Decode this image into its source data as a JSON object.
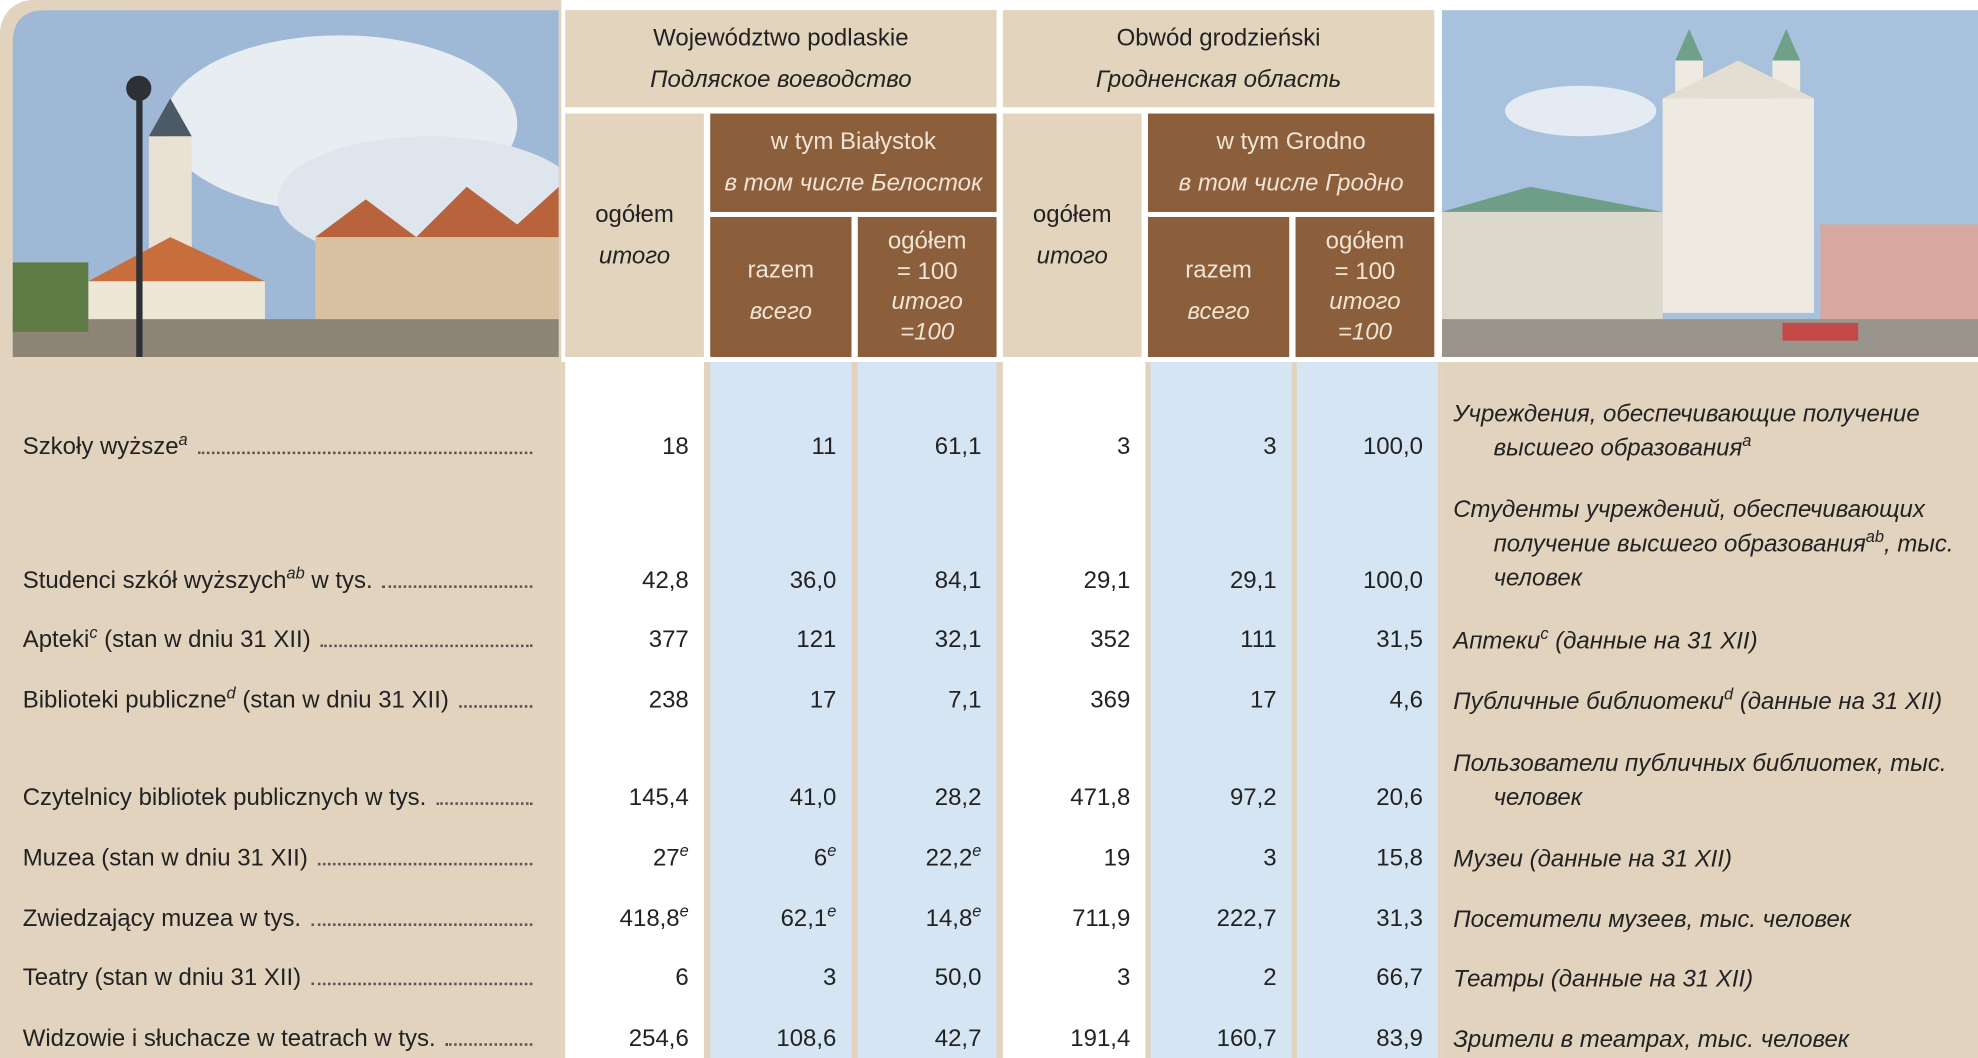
{
  "header": {
    "regions": [
      {
        "pl": "Województwo podlaskie",
        "ru": "Подляское воеводство",
        "total": {
          "pl": "ogółem",
          "ru": "итого"
        },
        "city": {
          "pl": "w tym Białystok",
          "ru": "в том числе Белосток"
        },
        "razem": {
          "pl": "razem",
          "ru": "всего"
        },
        "share": {
          "pl": "ogółem = 100",
          "ru": "итого =100"
        }
      },
      {
        "pl": "Obwód grodzieński",
        "ru": "Гродненская область",
        "total": {
          "pl": "ogółem",
          "ru": "итого"
        },
        "city": {
          "pl": "w tym Grodno",
          "ru": "в том числе Гродно"
        },
        "razem": {
          "pl": "razem",
          "ru": "всего"
        },
        "share": {
          "pl": "ogółem = 100",
          "ru": "итого =100"
        }
      }
    ]
  },
  "rows": [
    {
      "pl": [
        "Szkoły wyższe",
        {
          "sup": "a"
        }
      ],
      "cells": [
        "18",
        "11",
        "61,1",
        "3",
        "3",
        "100,0"
      ],
      "ru": [
        "Учреждения, обеспечивающие получение высшего образования",
        {
          "sup": "a"
        }
      ]
    },
    {
      "pl": [
        "Studenci szkół wyższych",
        {
          "sup": "ab"
        },
        " w tys."
      ],
      "cells": [
        "42,8",
        "36,0",
        "84,1",
        "29,1",
        "29,1",
        "100,0"
      ],
      "ru": [
        "Студенты учреждений, обеспечивающих получение высшего образования",
        {
          "sup": "ab"
        },
        ", тыс. человек"
      ]
    },
    {
      "pl": [
        "Apteki",
        {
          "sup": "c"
        },
        " (stan w dniu 31 XII)"
      ],
      "cells": [
        "377",
        "121",
        "32,1",
        "352",
        "111",
        "31,5"
      ],
      "ru": [
        "Аптеки",
        {
          "sup": "c"
        },
        " (данные на 31 XII)"
      ]
    },
    {
      "pl": [
        "Biblioteki publiczne",
        {
          "sup": "d"
        },
        " (stan w dniu 31 XII)"
      ],
      "cells": [
        "238",
        "17",
        "7,1",
        "369",
        "17",
        "4,6"
      ],
      "ru": [
        "Публичные библиотеки",
        {
          "sup": "d"
        },
        " (данные на 31 XII)"
      ]
    },
    {
      "pl": [
        "Czytelnicy bibliotek publicznych w tys."
      ],
      "cells": [
        "145,4",
        "41,0",
        "28,2",
        "471,8",
        "97,2",
        "20,6"
      ],
      "ru": [
        "Пользователи публичных библиотек, тыс. человек"
      ]
    },
    {
      "pl": [
        "Muzea (stan w dniu 31 XII)"
      ],
      "cells": [
        {
          "text": "27",
          "note": "e"
        },
        {
          "text": "6",
          "note": "e"
        },
        {
          "text": "22,2",
          "note": "e"
        },
        "19",
        "3",
        "15,8"
      ],
      "ru": [
        "Музеи (данные на 31 XII)"
      ]
    },
    {
      "pl": [
        "Zwiedzający muzea w tys."
      ],
      "cells": [
        {
          "text": "418,8",
          "note": "e"
        },
        {
          "text": "62,1",
          "note": "e"
        },
        {
          "text": "14,8",
          "note": "e"
        },
        "711,9",
        "222,7",
        "31,3"
      ],
      "ru": [
        "Посетители музеев, тыс. человек"
      ]
    },
    {
      "pl": [
        "Teatry (stan w dniu 31 XII)"
      ],
      "cells": [
        "6",
        "3",
        "50,0",
        "3",
        "2",
        "66,7"
      ],
      "ru": [
        "Театры (данные на 31 XII)"
      ]
    },
    {
      "pl": [
        "Widzowie i słuchacze w teatrach w tys."
      ],
      "cells": [
        "254,6",
        "108,6",
        "42,7",
        "191,4",
        "160,7",
        "83,9"
      ],
      "ru": [
        "Зрители в театрах, тыс. человек"
      ]
    }
  ]
}
